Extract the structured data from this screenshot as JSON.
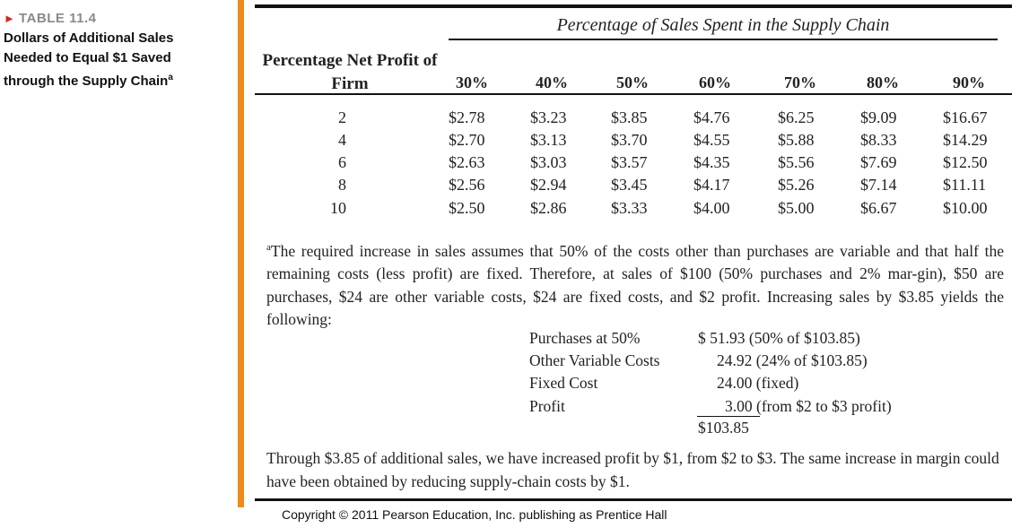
{
  "caption": {
    "label": "TABLE 11.4",
    "arrow": "►",
    "title_lines": [
      "Dollars of Additional Sales",
      "Needed to Equal $1 Saved",
      "through the Supply Chain"
    ],
    "title_superscript": "a"
  },
  "table": {
    "spanner": "Percentage of Sales Spent in the Supply Chain",
    "stub_header": "Percentage Net Profit of Firm",
    "columns": [
      "30%",
      "40%",
      "50%",
      "60%",
      "70%",
      "80%",
      "90%"
    ],
    "rows": [
      {
        "profit": "2",
        "values": [
          "$2.78",
          "$3.23",
          "$3.85",
          "$4.76",
          "$6.25",
          "$9.09",
          "$16.67"
        ]
      },
      {
        "profit": "4",
        "values": [
          "$2.70",
          "$3.13",
          "$3.70",
          "$4.55",
          "$5.88",
          "$8.33",
          "$14.29"
        ]
      },
      {
        "profit": "6",
        "values": [
          "$2.63",
          "$3.03",
          "$3.57",
          "$4.35",
          "$5.56",
          "$7.69",
          "$12.50"
        ]
      },
      {
        "profit": "8",
        "values": [
          "$2.56",
          "$2.94",
          "$3.45",
          "$4.17",
          "$5.26",
          "$7.14",
          "$11.11"
        ]
      },
      {
        "profit": "10",
        "values": [
          "$2.50",
          "$2.86",
          "$3.33",
          "$4.00",
          "$5.00",
          "$6.67",
          "$10.00"
        ]
      }
    ]
  },
  "footnote": {
    "marker": "a",
    "text": "The required increase in sales assumes that 50% of the costs other than purchases are variable and that half the remaining costs (less profit) are fixed. Therefore, at sales of $100 (50% purchases and 2% mar-gin), $50 are purchases, $24 are other variable costs, $24 are fixed costs, and $2 profit. Increasing sales by $3.85 yields the following:",
    "calc": [
      {
        "label": "Purchases at 50%",
        "value": "$ 51.93 (50% of $103.85)"
      },
      {
        "label": "Other Variable Costs",
        "value": "24.92 (24% of $103.85)"
      },
      {
        "label": "Fixed Cost",
        "value": "24.00 (fixed)"
      },
      {
        "label": "Profit",
        "value": "3.00 (from $2 to $3 profit)"
      }
    ],
    "total": "$103.85",
    "conclusion": "Through $3.85 of additional sales, we have increased profit by $1, from $2 to $3. The same increase in margin could have been obtained by reducing supply-chain costs by $1."
  },
  "copyright": "Copyright © 2011 Pearson Education, Inc. publishing as Prentice Hall",
  "colors": {
    "accent_bar": "#f08a1c",
    "arrow": "#d12b1f",
    "label_gray": "#8a8a8a"
  }
}
